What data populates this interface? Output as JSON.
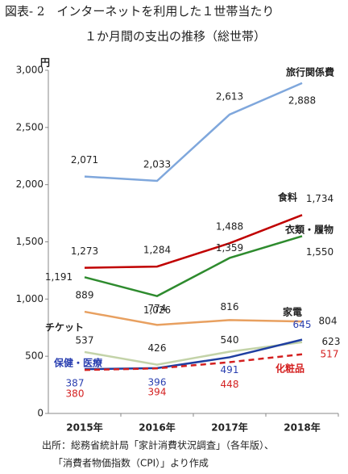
{
  "chart_data": {
    "type": "line",
    "title": "図表- 2　インターネットを利用した１世帯当たり",
    "subtitle": "１か月間の支出の推移（総世帯）",
    "y_unit": "円",
    "categories": [
      "2015年",
      "2016年",
      "2017年",
      "2018年"
    ],
    "ylim": [
      0,
      3000
    ],
    "yticks": [
      0,
      500,
      {
        "value": 1000,
        "label": "1,000"
      },
      {
        "value": 1500,
        "label": "1,500"
      },
      {
        "value": 2000,
        "label": "2,000"
      },
      {
        "value": 2500,
        "label": "2,500"
      },
      {
        "value": 3000,
        "label": "3,000"
      }
    ],
    "series": [
      {
        "name": "旅行関係費",
        "color": "#7fa7dc",
        "label_color": "#222222",
        "values": [
          2071,
          2033,
          2613,
          2888
        ],
        "value_labels": [
          "2,071",
          "2,033",
          "2,613",
          "2,888"
        ]
      },
      {
        "name": "食料",
        "color": "#c00000",
        "label_color": "#222222",
        "values": [
          1273,
          1284,
          1488,
          1734
        ],
        "value_labels": [
          "1,273",
          "1,284",
          "1,488",
          "1,734"
        ]
      },
      {
        "name": "衣類・履物",
        "color": "#2e8b2e",
        "label_color": "#222222",
        "values": [
          1191,
          1026,
          1359,
          1550
        ],
        "value_labels": [
          "1,191",
          "1,026",
          "1,359",
          "1,550"
        ]
      },
      {
        "name": "家電",
        "color": "#e8a060",
        "label_color": "#222222",
        "values": [
          889,
          774,
          816,
          804
        ]
      },
      {
        "name": "チケット",
        "color": "#c3d3a8",
        "label_color": "#222222",
        "values": [
          537,
          426,
          540,
          623
        ]
      },
      {
        "name": "保健・医療",
        "color": "#1f3fa0",
        "label_color": "#2a3fb0",
        "values": [
          387,
          396,
          491,
          645
        ]
      },
      {
        "name": "化粧品",
        "color": "#d42020",
        "label_color": "#d42020",
        "dashed": true,
        "values": [
          380,
          394,
          448,
          517
        ]
      }
    ],
    "source": [
      "出所：総務省統計局「家計消費状況調査」（各年版）、",
      "「消費者物価指数（CPI）」より作成"
    ]
  }
}
